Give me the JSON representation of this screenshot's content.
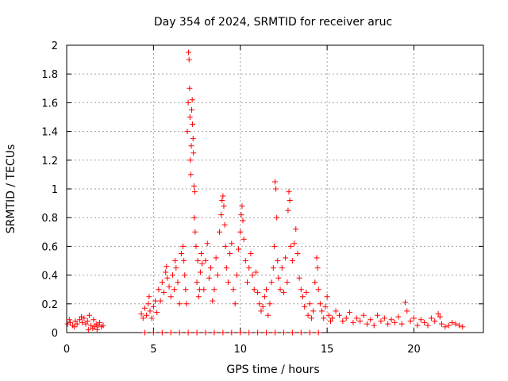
{
  "chart_data": {
    "type": "scatter",
    "title": "Day 354 of 2024, SRMTID for receiver aruc",
    "xlabel": "GPS time / hours",
    "ylabel": "SRMTID / TECUs",
    "xlim": [
      0,
      24
    ],
    "ylim": [
      0,
      2
    ],
    "xticks": [
      0,
      5,
      10,
      15,
      20
    ],
    "xtick_labels": [
      "0",
      "5",
      "10",
      "15",
      "20"
    ],
    "yticks": [
      0,
      0.2,
      0.4,
      0.6,
      0.8,
      1,
      1.2,
      1.4,
      1.6,
      1.8,
      2
    ],
    "ytick_labels": [
      "0",
      "0.2",
      "0.4",
      "0.6",
      "0.8",
      "1",
      "1.2",
      "1.4",
      "1.6",
      "1.8",
      "2"
    ],
    "grid": true,
    "marker": "+",
    "color": "#ff0000",
    "series": [
      {
        "name": "SRMTID",
        "points": [
          [
            0.05,
            0.06
          ],
          [
            0.2,
            0.07
          ],
          [
            0.35,
            0.05
          ],
          [
            0.5,
            0.08
          ],
          [
            0.6,
            0.06
          ],
          [
            0.75,
            0.09
          ],
          [
            0.9,
            0.07
          ],
          [
            1.0,
            0.1
          ],
          [
            1.1,
            0.06
          ],
          [
            1.2,
            0.08
          ],
          [
            1.3,
            0.12
          ],
          [
            1.4,
            0.05
          ],
          [
            1.5,
            0.03
          ],
          [
            1.55,
            0.09
          ],
          [
            1.6,
            0.04
          ],
          [
            1.7,
            0.06
          ],
          [
            1.8,
            0.05
          ],
          [
            1.9,
            0.07
          ],
          [
            2.0,
            0.04
          ],
          [
            2.1,
            0.05
          ],
          [
            0.15,
            0.09
          ],
          [
            0.45,
            0.04
          ],
          [
            0.85,
            0.11
          ],
          [
            1.25,
            0.02
          ],
          [
            1.75,
            0.02
          ],
          [
            4.3,
            0.13
          ],
          [
            4.4,
            0.1
          ],
          [
            4.5,
            0.17
          ],
          [
            4.6,
            0.12
          ],
          [
            4.7,
            0.2
          ],
          [
            4.75,
            0.25
          ],
          [
            4.8,
            0.15
          ],
          [
            4.9,
            0.1
          ],
          [
            5.0,
            0.18
          ],
          [
            5.1,
            0.22
          ],
          [
            5.2,
            0.14
          ],
          [
            5.3,
            0.3
          ],
          [
            5.4,
            0.22
          ],
          [
            5.5,
            0.35
          ],
          [
            5.6,
            0.28
          ],
          [
            5.7,
            0.42
          ],
          [
            5.75,
            0.46
          ],
          [
            5.8,
            0.38
          ],
          [
            5.9,
            0.32
          ],
          [
            6.0,
            0.25
          ],
          [
            6.1,
            0.4
          ],
          [
            6.2,
            0.3
          ],
          [
            6.25,
            0.5
          ],
          [
            6.3,
            0.45
          ],
          [
            6.4,
            0.35
          ],
          [
            6.5,
            0.2
          ],
          [
            6.6,
            0.55
          ],
          [
            6.7,
            0.6
          ],
          [
            6.75,
            0.5
          ],
          [
            6.8,
            0.4
          ],
          [
            6.85,
            0.3
          ],
          [
            6.9,
            0.2
          ],
          [
            6.95,
            1.4
          ],
          [
            7.0,
            1.6
          ],
          [
            7.02,
            1.95
          ],
          [
            7.05,
            1.9
          ],
          [
            7.08,
            1.7
          ],
          [
            7.1,
            1.5
          ],
          [
            7.12,
            1.2
          ],
          [
            7.15,
            1.1
          ],
          [
            7.18,
            1.3
          ],
          [
            7.2,
            1.55
          ],
          [
            7.23,
            1.62
          ],
          [
            7.25,
            1.45
          ],
          [
            7.28,
            1.35
          ],
          [
            7.3,
            1.25
          ],
          [
            7.33,
            1.02
          ],
          [
            7.35,
            0.8
          ],
          [
            7.38,
            0.98
          ],
          [
            7.4,
            0.7
          ],
          [
            7.45,
            0.6
          ],
          [
            7.5,
            0.35
          ],
          [
            7.55,
            0.5
          ],
          [
            7.6,
            0.25
          ],
          [
            7.65,
            0.3
          ],
          [
            7.7,
            0.42
          ],
          [
            7.75,
            0.55
          ],
          [
            7.8,
            0.48
          ],
          [
            7.9,
            0.3
          ],
          [
            8.0,
            0.5
          ],
          [
            8.1,
            0.62
          ],
          [
            8.2,
            0.38
          ],
          [
            8.3,
            0.45
          ],
          [
            8.4,
            0.22
          ],
          [
            8.5,
            0.3
          ],
          [
            8.6,
            0.52
          ],
          [
            8.7,
            0.4
          ],
          [
            8.8,
            0.7
          ],
          [
            8.9,
            0.82
          ],
          [
            8.95,
            0.92
          ],
          [
            9.0,
            0.95
          ],
          [
            9.05,
            0.88
          ],
          [
            9.1,
            0.75
          ],
          [
            9.15,
            0.6
          ],
          [
            9.2,
            0.45
          ],
          [
            9.3,
            0.35
          ],
          [
            9.4,
            0.55
          ],
          [
            9.5,
            0.62
          ],
          [
            9.6,
            0.3
          ],
          [
            9.7,
            0.2
          ],
          [
            9.8,
            0.4
          ],
          [
            9.9,
            0.58
          ],
          [
            10.0,
            0.7
          ],
          [
            10.05,
            0.82
          ],
          [
            10.1,
            0.88
          ],
          [
            10.15,
            0.78
          ],
          [
            10.2,
            0.65
          ],
          [
            10.3,
            0.5
          ],
          [
            10.4,
            0.35
          ],
          [
            10.5,
            0.45
          ],
          [
            10.6,
            0.55
          ],
          [
            10.7,
            0.4
          ],
          [
            10.8,
            0.3
          ],
          [
            10.9,
            0.42
          ],
          [
            11.0,
            0.28
          ],
          [
            11.1,
            0.2
          ],
          [
            11.2,
            0.15
          ],
          [
            11.3,
            0.18
          ],
          [
            11.4,
            0.25
          ],
          [
            11.5,
            0.3
          ],
          [
            11.6,
            0.12
          ],
          [
            11.7,
            0.2
          ],
          [
            11.8,
            0.35
          ],
          [
            11.9,
            0.45
          ],
          [
            11.95,
            0.6
          ],
          [
            12.0,
            1.05
          ],
          [
            12.05,
            1.0
          ],
          [
            12.1,
            0.8
          ],
          [
            12.15,
            0.5
          ],
          [
            12.2,
            0.38
          ],
          [
            12.3,
            0.3
          ],
          [
            12.4,
            0.45
          ],
          [
            12.5,
            0.28
          ],
          [
            12.6,
            0.52
          ],
          [
            12.7,
            0.35
          ],
          [
            12.75,
            0.85
          ],
          [
            12.8,
            0.98
          ],
          [
            12.85,
            0.92
          ],
          [
            12.9,
            0.6
          ],
          [
            13.0,
            0.5
          ],
          [
            13.1,
            0.62
          ],
          [
            13.2,
            0.72
          ],
          [
            13.3,
            0.55
          ],
          [
            13.4,
            0.38
          ],
          [
            13.5,
            0.3
          ],
          [
            13.6,
            0.25
          ],
          [
            13.7,
            0.18
          ],
          [
            13.8,
            0.28
          ],
          [
            13.9,
            0.12
          ],
          [
            14.0,
            0.2
          ],
          [
            14.1,
            0.1
          ],
          [
            14.2,
            0.15
          ],
          [
            14.3,
            0.35
          ],
          [
            14.4,
            0.52
          ],
          [
            14.45,
            0.45
          ],
          [
            14.5,
            0.3
          ],
          [
            14.6,
            0.2
          ],
          [
            14.7,
            0.15
          ],
          [
            14.8,
            0.1
          ],
          [
            14.9,
            0.18
          ],
          [
            15.0,
            0.25
          ],
          [
            15.1,
            0.12
          ],
          [
            15.2,
            0.08
          ],
          [
            15.3,
            0.1
          ],
          [
            15.5,
            0.15
          ],
          [
            15.7,
            0.12
          ],
          [
            15.9,
            0.08
          ],
          [
            16.1,
            0.1
          ],
          [
            16.3,
            0.14
          ],
          [
            16.5,
            0.07
          ],
          [
            16.7,
            0.1
          ],
          [
            16.9,
            0.08
          ],
          [
            17.1,
            0.12
          ],
          [
            17.3,
            0.06
          ],
          [
            17.5,
            0.09
          ],
          [
            17.7,
            0.05
          ],
          [
            17.9,
            0.12
          ],
          [
            18.1,
            0.08
          ],
          [
            18.3,
            0.1
          ],
          [
            18.5,
            0.06
          ],
          [
            18.7,
            0.09
          ],
          [
            18.9,
            0.07
          ],
          [
            19.1,
            0.11
          ],
          [
            19.3,
            0.06
          ],
          [
            19.5,
            0.21
          ],
          [
            19.6,
            0.15
          ],
          [
            19.8,
            0.08
          ],
          [
            20.0,
            0.1
          ],
          [
            20.2,
            0.05
          ],
          [
            20.4,
            0.09
          ],
          [
            20.6,
            0.07
          ],
          [
            20.8,
            0.05
          ],
          [
            21.0,
            0.1
          ],
          [
            21.2,
            0.08
          ],
          [
            21.4,
            0.13
          ],
          [
            21.5,
            0.11
          ],
          [
            21.6,
            0.06
          ],
          [
            21.8,
            0.04
          ],
          [
            22.0,
            0.05
          ],
          [
            22.2,
            0.07
          ],
          [
            22.4,
            0.06
          ],
          [
            22.6,
            0.05
          ],
          [
            22.8,
            0.04
          ],
          [
            4.5,
            0.0
          ],
          [
            5.0,
            0.0
          ],
          [
            5.5,
            0.0
          ],
          [
            6.0,
            0.0
          ],
          [
            6.5,
            0.0
          ],
          [
            7.0,
            0.0
          ],
          [
            7.5,
            0.0
          ],
          [
            8.0,
            0.0
          ],
          [
            8.5,
            0.0
          ],
          [
            9.0,
            0.0
          ],
          [
            9.5,
            0.0
          ],
          [
            10.0,
            0.0
          ],
          [
            10.5,
            0.0
          ],
          [
            11.0,
            0.0
          ],
          [
            11.5,
            0.0
          ],
          [
            12.0,
            0.0
          ],
          [
            12.5,
            0.0
          ],
          [
            13.0,
            0.0
          ],
          [
            13.5,
            0.0
          ],
          [
            14.0,
            0.0
          ],
          [
            14.5,
            0.0
          ]
        ]
      }
    ]
  }
}
